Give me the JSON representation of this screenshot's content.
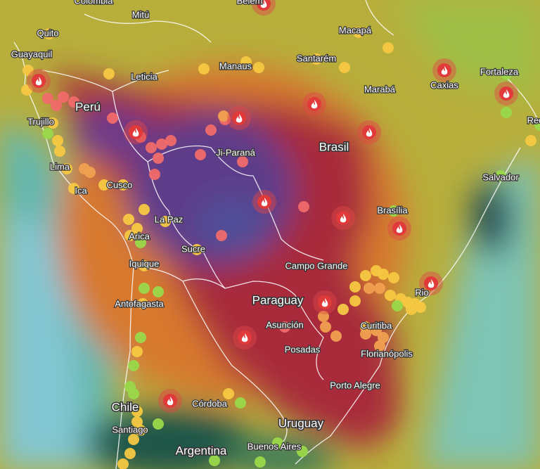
{
  "labels": [
    "Colombia",
    "Mitú",
    "Quito",
    "Guayaquil",
    "Leticia",
    "Manaus",
    "Santarém",
    "Macapá",
    "Belém",
    "Fortaleza",
    "Caxias",
    "Marabá",
    "Perú",
    "Trujillo",
    "Brasil",
    "Ji-Paraná",
    "Recife",
    "Lima",
    "Cusco",
    "Ica",
    "Salvador",
    "La Paz",
    "Brasília",
    "Arica",
    "Sucre",
    "Iquique",
    "Campo Grande",
    "Paraguay",
    "Rio",
    "Antofagasta",
    "Asunción",
    "Curitiba",
    "Posadas",
    "Florianópolis",
    "Porto Alegre",
    "Córdoba",
    "Chile",
    "Santiago",
    "Uruguay",
    "Argentina",
    "Buenos Aires"
  ]
}
